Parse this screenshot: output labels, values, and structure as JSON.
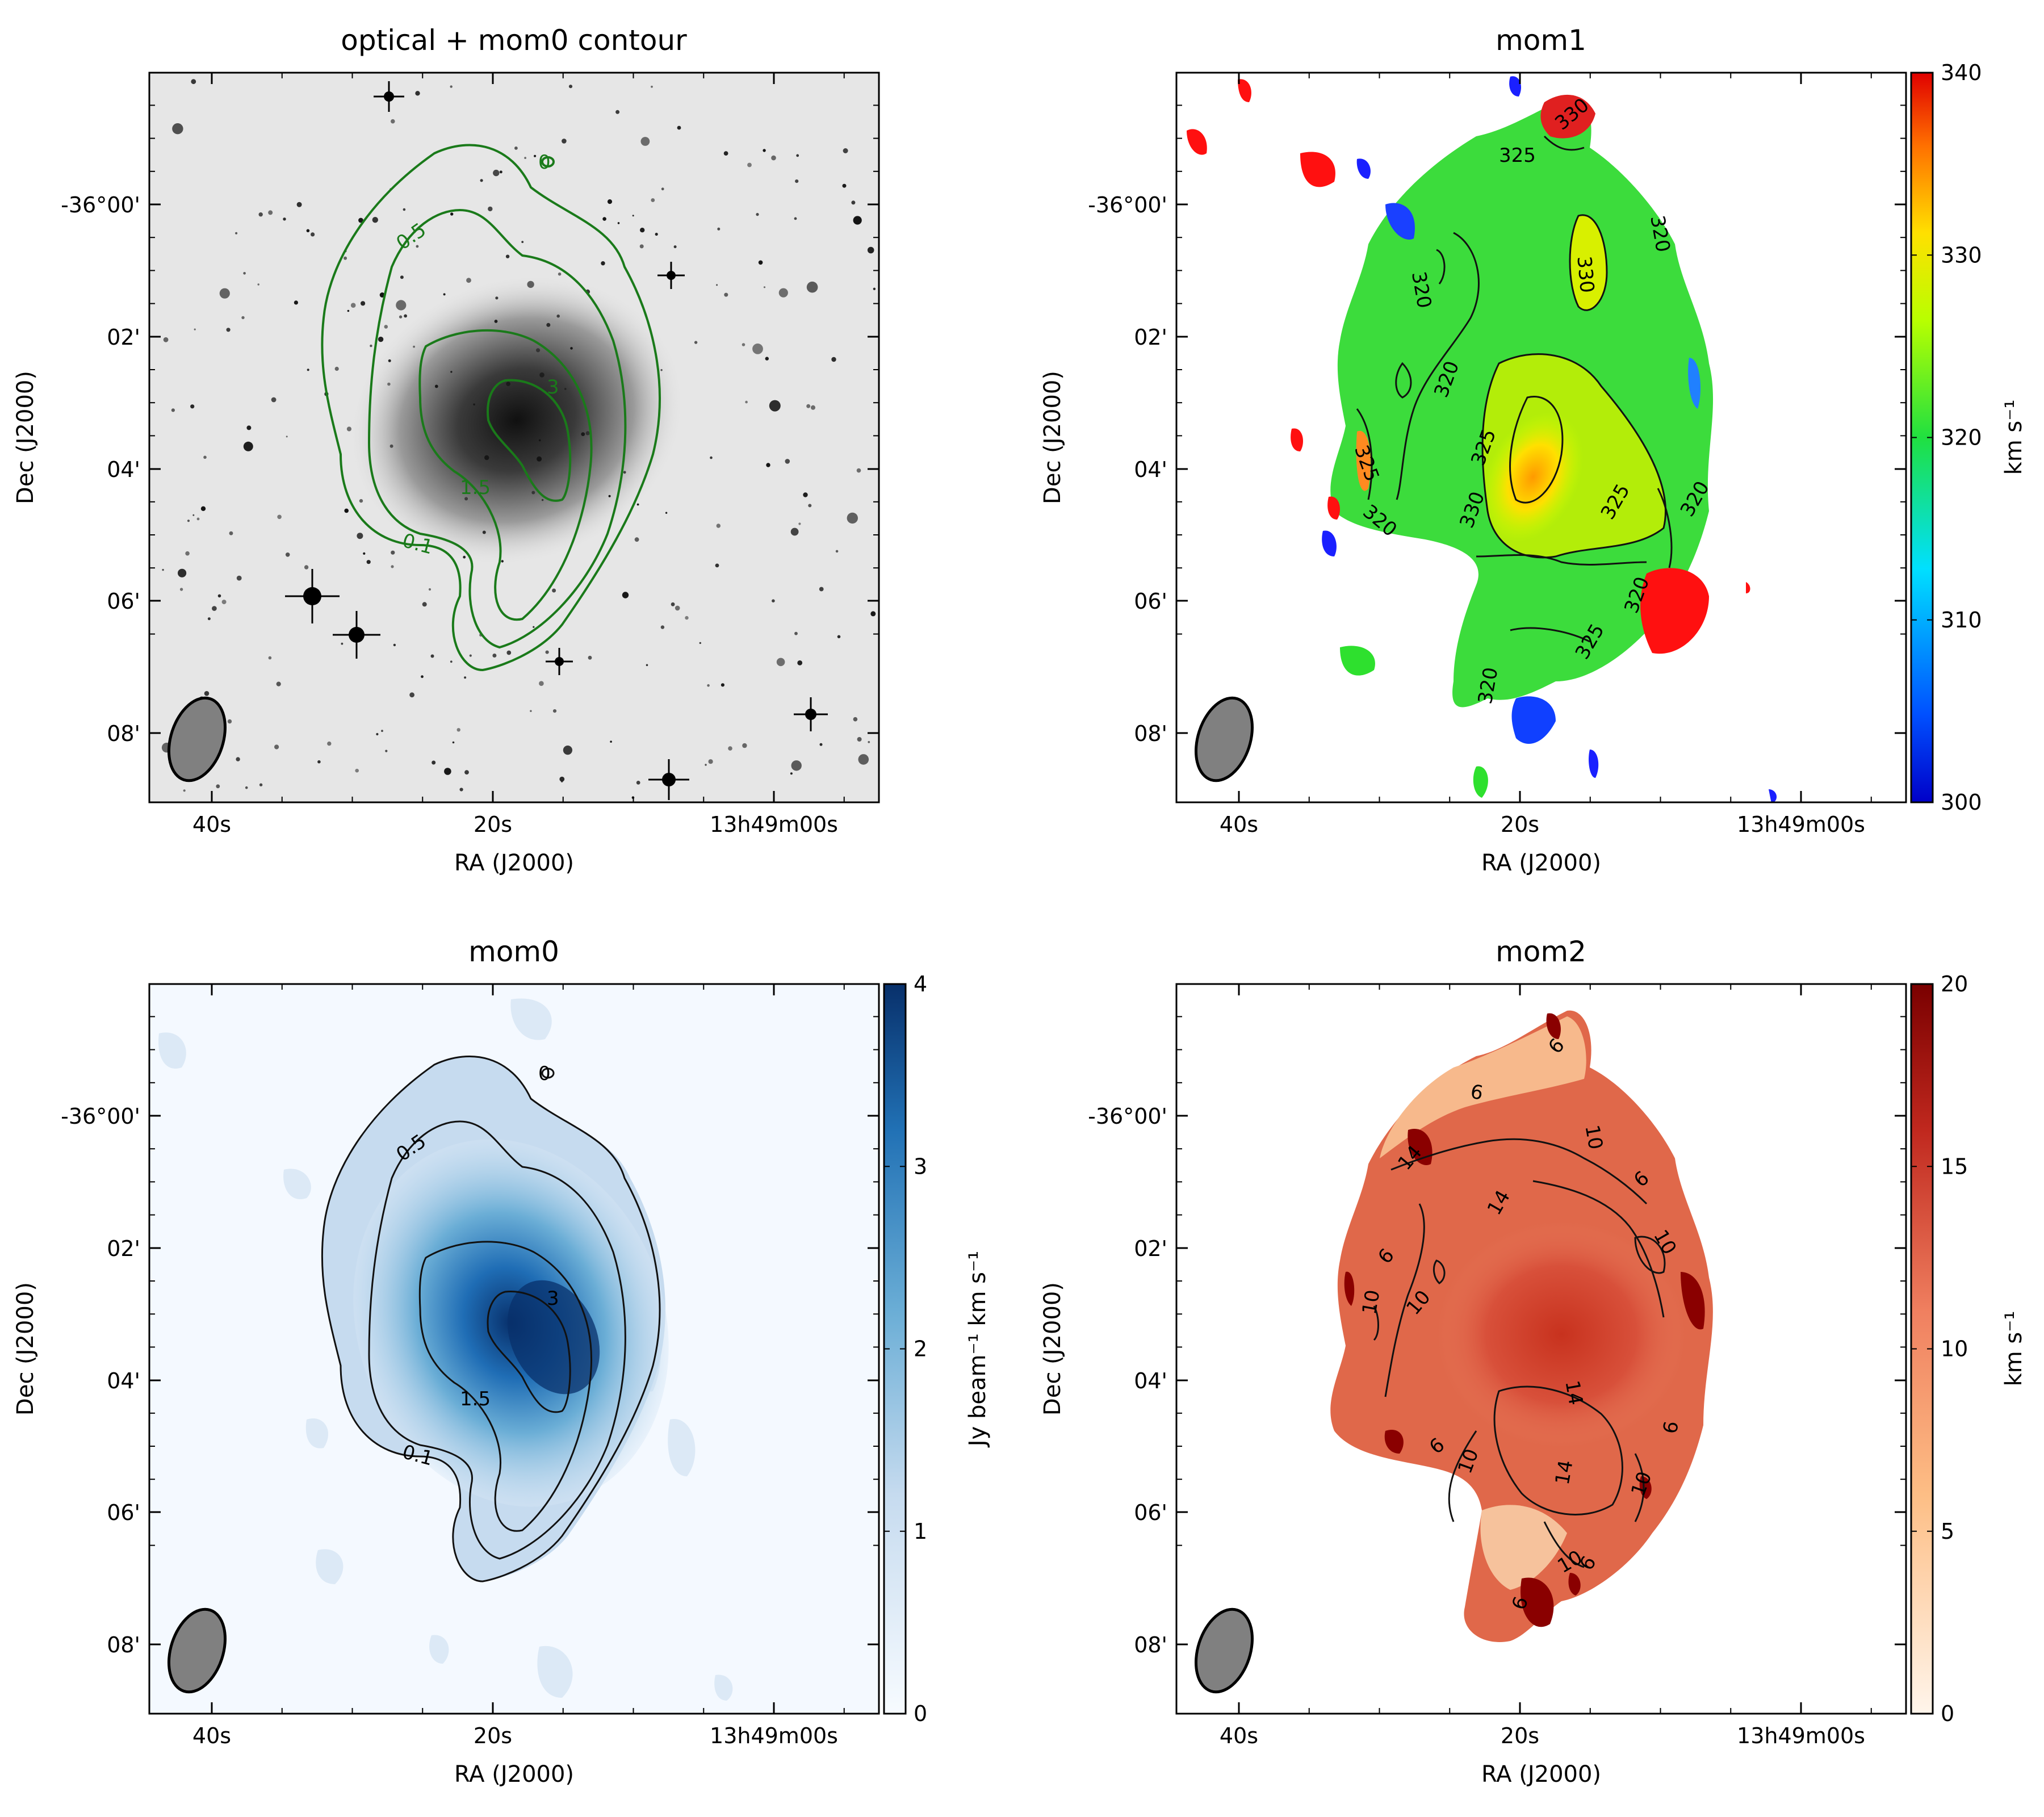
{
  "panels": [
    {
      "title": "optical + mom0 contour",
      "xlabel": "RA (J2000)",
      "ylabel": "Dec (J2000)",
      "xticks": [
        "40s",
        "20s",
        "13h49m00s"
      ],
      "yticks": [
        "-36°00'",
        "02'",
        "04'",
        "06'",
        "08'"
      ],
      "contour_labels": [
        "0",
        "0.5",
        "3",
        "1.5",
        "0.1"
      ]
    },
    {
      "title": "mom1",
      "xlabel": "RA (J2000)",
      "ylabel": "Dec (J2000)",
      "xticks": [
        "40s",
        "20s",
        "13h49m00s"
      ],
      "yticks": [
        "-36°00'",
        "02'",
        "04'",
        "06'",
        "08'"
      ],
      "contour_labels": [
        "330",
        "325",
        "320",
        "330",
        "320",
        "320",
        "325",
        "330",
        "325",
        "325",
        "320",
        "320",
        "320",
        "320",
        "325"
      ],
      "colorbar": {
        "ticks": [
          "340",
          "330",
          "320",
          "310",
          "300"
        ],
        "label": "km s⁻¹",
        "range": [
          300,
          340
        ]
      }
    },
    {
      "title": "mom0",
      "xlabel": "RA (J2000)",
      "ylabel": "Dec (J2000)",
      "xticks": [
        "40s",
        "20s",
        "13h49m00s"
      ],
      "yticks": [
        "-36°00'",
        "02'",
        "04'",
        "06'",
        "08'"
      ],
      "contour_labels": [
        "0",
        "0.5",
        "3",
        "1.5",
        "0.1"
      ],
      "colorbar": {
        "ticks": [
          "4",
          "3",
          "2",
          "1",
          "0"
        ],
        "label": "Jy beam⁻¹ km s⁻¹",
        "range": [
          0,
          4
        ]
      }
    },
    {
      "title": "mom2",
      "xlabel": "RA (J2000)",
      "ylabel": "Dec (J2000)",
      "xticks": [
        "40s",
        "20s",
        "13h49m00s"
      ],
      "yticks": [
        "-36°00'",
        "02'",
        "04'",
        "06'",
        "08'"
      ],
      "contour_labels": [
        "6",
        "6",
        "14",
        "14",
        "10",
        "10",
        "6",
        "6",
        "10",
        "10",
        "14",
        "14",
        "10",
        "6",
        "10",
        "6",
        "6",
        "10",
        "6"
      ],
      "colorbar": {
        "ticks": [
          "20",
          "15",
          "10",
          "5",
          "0"
        ],
        "label": "km s⁻¹",
        "range": [
          0,
          20
        ]
      }
    }
  ],
  "colors": {
    "green_contour": "#1a7a1a",
    "black_contour": "#111111",
    "beam": "#808080"
  }
}
